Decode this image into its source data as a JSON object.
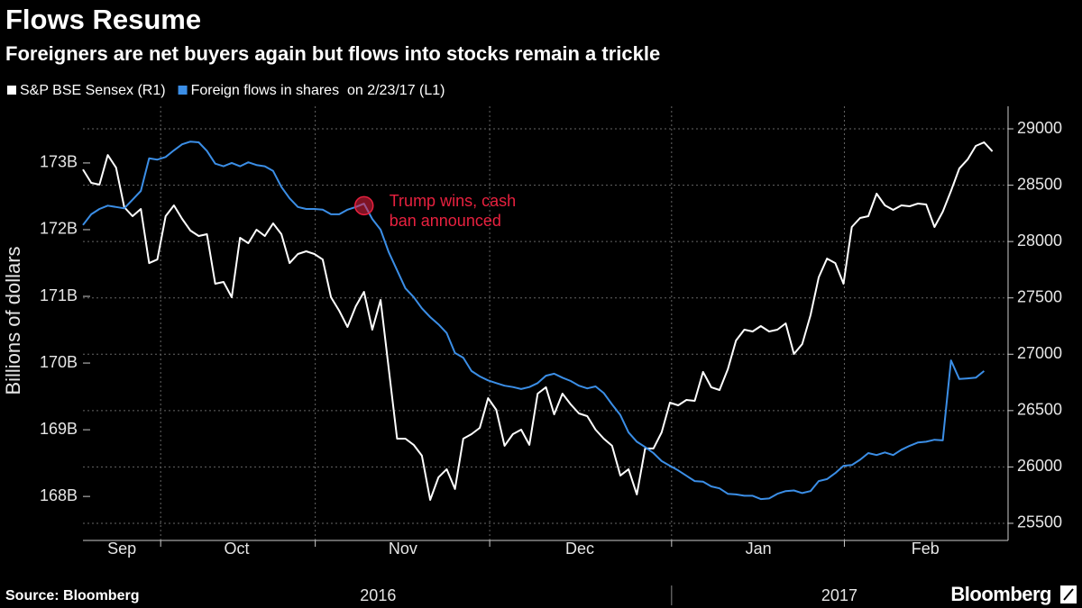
{
  "chart_data": {
    "type": "line",
    "title": "Flows Resume",
    "subtitle": "Foreigners are net buyers again but flows into stocks remain a trickle",
    "ylabel": "Billions of dollars",
    "source": "Source: Bloomberg",
    "brand": "Bloomberg",
    "x": [
      0,
      1,
      2,
      3,
      4,
      5,
      6,
      7,
      8,
      9,
      10,
      11,
      12,
      13,
      14,
      15,
      16,
      17,
      18,
      19,
      20,
      21,
      22,
      23,
      24,
      25,
      26,
      27,
      28,
      29,
      30,
      31,
      32,
      33,
      34,
      35,
      36,
      37,
      38,
      39,
      40,
      41,
      42,
      43,
      44,
      45,
      46,
      47,
      48,
      49,
      50,
      51,
      52,
      53,
      54,
      55,
      56,
      57,
      58,
      59,
      60,
      61,
      62,
      63,
      64,
      65,
      66,
      67,
      68,
      69,
      70,
      71,
      72,
      73,
      74,
      75,
      76,
      77,
      78,
      79,
      80,
      81,
      82,
      83,
      84,
      85,
      86,
      87,
      88,
      89,
      90,
      91,
      92,
      93,
      94,
      95,
      96,
      97,
      98,
      99,
      100,
      101,
      102,
      103,
      104,
      105,
      106,
      107,
      108,
      109,
      110
    ],
    "xlim": [
      0,
      111.9
    ],
    "xticks": [
      {
        "value": 4.7,
        "label": "Sep"
      },
      {
        "value": 18.6,
        "label": "Oct"
      },
      {
        "value": 38.7,
        "label": "Nov"
      },
      {
        "value": 60.1,
        "label": "Dec"
      },
      {
        "value": 81.7,
        "label": "Jan"
      },
      {
        "value": 101.9,
        "label": "Feb"
      }
    ],
    "xgrid": [
      9.4,
      28.1,
      49.2,
      71.2,
      92.1
    ],
    "years": [
      {
        "value": 35.7,
        "label": "2016"
      },
      {
        "value": 91.5,
        "label": "2017"
      }
    ],
    "ylim": [
      167.34,
      173.85
    ],
    "yticks": [
      {
        "value": 168,
        "label": "168B"
      },
      {
        "value": 169,
        "label": "169B"
      },
      {
        "value": 170,
        "label": "170B"
      },
      {
        "value": 171,
        "label": "171B"
      },
      {
        "value": 172,
        "label": "172B"
      },
      {
        "value": 173,
        "label": "173B"
      }
    ],
    "y2lim": [
      25348,
      29200
    ],
    "y2ticks": [
      25500,
      26000,
      26500,
      27000,
      27500,
      28000,
      28500,
      29000
    ],
    "grid": true,
    "series": [
      {
        "name": "S&P BSE Sensex (R1)",
        "color": "#ffffff",
        "axis": "y2",
        "values": [
          28640,
          28521,
          28505,
          28768,
          28656,
          28305,
          28225,
          28289,
          27809,
          27841,
          28225,
          28321,
          28201,
          28097,
          28049,
          28065,
          27626,
          27642,
          27506,
          28033,
          27985,
          28105,
          28049,
          28161,
          28065,
          27809,
          27889,
          27913,
          27889,
          27841,
          27506,
          27386,
          27242,
          27426,
          27554,
          27218,
          27482,
          26867,
          26251,
          26251,
          26196,
          26100,
          25708,
          25908,
          25980,
          25804,
          26251,
          26291,
          26347,
          26611,
          26507,
          26188,
          26291,
          26331,
          26196,
          26651,
          26707,
          26467,
          26651,
          26555,
          26475,
          26451,
          26331,
          26251,
          26188,
          25924,
          25980,
          25756,
          26164,
          26164,
          26307,
          26571,
          26547,
          26595,
          26587,
          26843,
          26707,
          26683,
          26867,
          27122,
          27218,
          27202,
          27250,
          27202,
          27218,
          27274,
          27002,
          27090,
          27346,
          27682,
          27849,
          27809,
          27626,
          28129,
          28209,
          28225,
          28425,
          28321,
          28281,
          28321,
          28313,
          28337,
          28329,
          28129,
          28265,
          28449,
          28648,
          28728,
          28848,
          28880,
          28800
        ]
      },
      {
        "name": "Foreign flows in shares  on 2/23/17 (L1)",
        "color": "#3b8ee6",
        "values": [
          172.07,
          172.23,
          172.31,
          172.36,
          172.34,
          172.32,
          172.45,
          172.58,
          173.07,
          173.05,
          173.09,
          173.19,
          173.28,
          173.32,
          173.31,
          173.18,
          172.99,
          172.95,
          173.0,
          172.95,
          173.01,
          172.97,
          172.95,
          172.88,
          172.64,
          172.47,
          172.34,
          172.31,
          172.31,
          172.3,
          172.23,
          172.23,
          172.3,
          172.34,
          172.39,
          172.16,
          172.0,
          171.66,
          171.39,
          171.12,
          170.99,
          170.82,
          170.69,
          170.58,
          170.45,
          170.15,
          170.08,
          169.88,
          169.8,
          169.74,
          169.7,
          169.66,
          169.64,
          169.61,
          169.64,
          169.7,
          169.81,
          169.84,
          169.78,
          169.73,
          169.66,
          169.62,
          169.65,
          169.55,
          169.38,
          169.22,
          168.96,
          168.82,
          168.74,
          168.65,
          168.53,
          168.46,
          168.39,
          168.31,
          168.23,
          168.22,
          168.15,
          168.12,
          168.04,
          168.03,
          168.01,
          168.01,
          167.96,
          167.97,
          168.04,
          168.08,
          168.09,
          168.05,
          168.08,
          168.23,
          168.26,
          168.35,
          168.46,
          168.47,
          168.55,
          168.65,
          168.62,
          168.66,
          168.62,
          168.7,
          168.76,
          168.81,
          168.82,
          168.85,
          168.84,
          170.04,
          169.76,
          169.77,
          169.78,
          169.88,
          null
        ]
      }
    ],
    "annotation": {
      "text": [
        "Trump wins, cash",
        "ban announced"
      ],
      "x": 34,
      "y": 172.36,
      "color": "#e8213f"
    }
  }
}
